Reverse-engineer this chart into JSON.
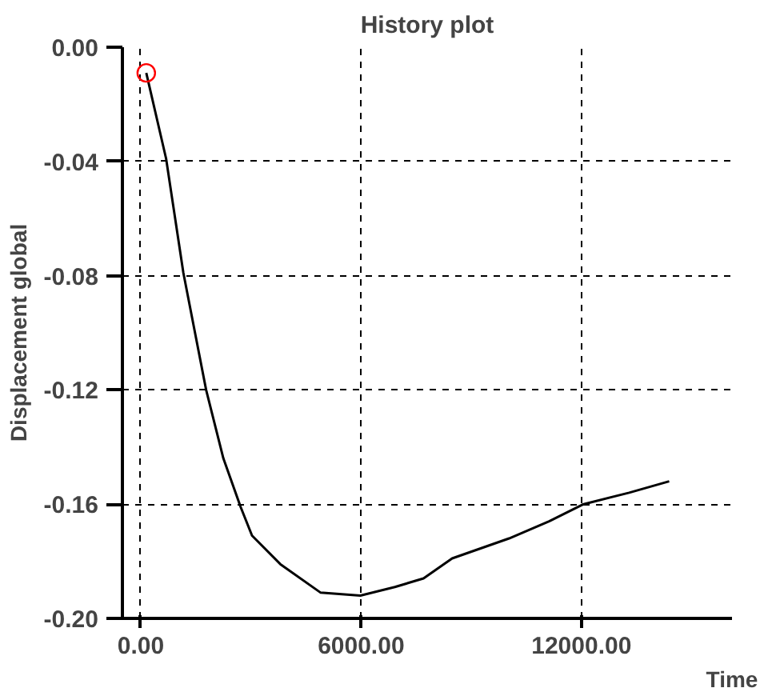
{
  "chart_data": {
    "type": "line",
    "title": "History plot",
    "xlabel": "Time",
    "ylabel": "Displacement global",
    "xlim": [
      -500,
      16100
    ],
    "ylim": [
      -0.2,
      0
    ],
    "xticks": [
      {
        "value": 0,
        "label": "0.00"
      },
      {
        "value": 6000,
        "label": "6000.00"
      },
      {
        "value": 12000,
        "label": "12000.00"
      }
    ],
    "yticks": [
      {
        "value": 0,
        "label": "0.00"
      },
      {
        "value": -0.04,
        "label": "-0.04"
      },
      {
        "value": -0.08,
        "label": "-0.08"
      },
      {
        "value": -0.12,
        "label": "-0.12"
      },
      {
        "value": -0.16,
        "label": "-0.16"
      },
      {
        "value": -0.2,
        "label": "-0.20"
      }
    ],
    "grid": true,
    "marker": "none",
    "line_style": "solid",
    "series": [
      {
        "color": "#000000",
        "x": [
          150,
          690,
          1160,
          1780,
          2250,
          2720,
          3030,
          3800,
          4900,
          5980,
          6920,
          7700,
          8480,
          10030,
          11120,
          12060,
          13300,
          14390
        ],
        "values": [
          -0.009,
          -0.039,
          -0.079,
          -0.12,
          -0.144,
          -0.161,
          -0.171,
          -0.181,
          -0.191,
          -0.192,
          -0.189,
          -0.186,
          -0.179,
          -0.172,
          -0.166,
          -0.16,
          -0.156,
          -0.152
        ]
      },
      {
        "type": "scatter",
        "marker": "circle",
        "color": "#ff0000",
        "x": [
          150
        ],
        "values": [
          -0.009
        ]
      }
    ]
  }
}
